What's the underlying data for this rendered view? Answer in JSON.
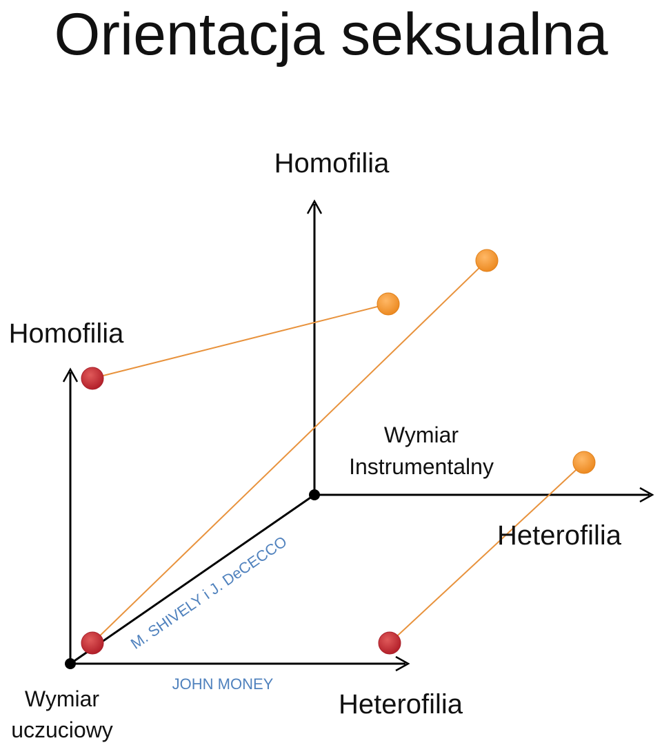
{
  "title": "Orientacja seksualna",
  "labels": {
    "top_axis": "Homofilia",
    "left_axis": "Homofilia",
    "instrumental_line1": "Wymiar",
    "instrumental_line2": "Instrumentalny",
    "right_axis": "Heterofilia",
    "bottom_axis": "Heterofilia",
    "emotional_line1": "Wymiar",
    "emotional_line2": "uczuciowy",
    "john_money": "JOHN MONEY",
    "shively_dececco": "M. SHIVELY i J. DeCECCO"
  },
  "colors": {
    "axis": "#000000",
    "red_point": "#c0282d",
    "orange_point": "#f0922b",
    "connector": "#e8923c",
    "blue_text": "#4f81bd"
  }
}
